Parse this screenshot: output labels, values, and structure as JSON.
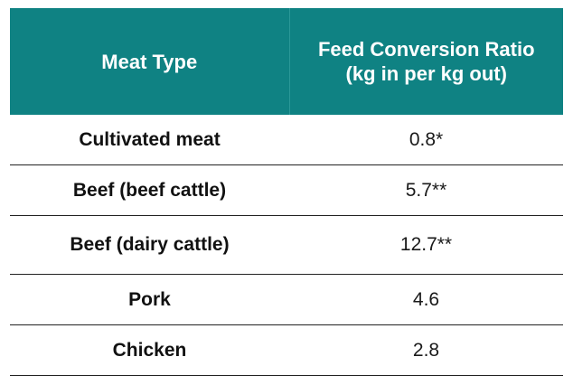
{
  "table": {
    "headers": {
      "meat_type": "Meat Type",
      "fcr": "Feed Conversion Ratio (kg in per kg out)"
    },
    "rows": [
      {
        "meat": "Cultivated meat",
        "value": "0.8*"
      },
      {
        "meat": "Beef (beef cattle)",
        "value": "5.7**"
      },
      {
        "meat": "Beef (dairy cattle)",
        "value": "12.7**"
      },
      {
        "meat": "Pork",
        "value": "4.6"
      },
      {
        "meat": "Chicken",
        "value": "2.8"
      }
    ]
  },
  "colors": {
    "header_background": "#0f8283",
    "header_text": "#ffffff",
    "row_divider": "#222222"
  }
}
